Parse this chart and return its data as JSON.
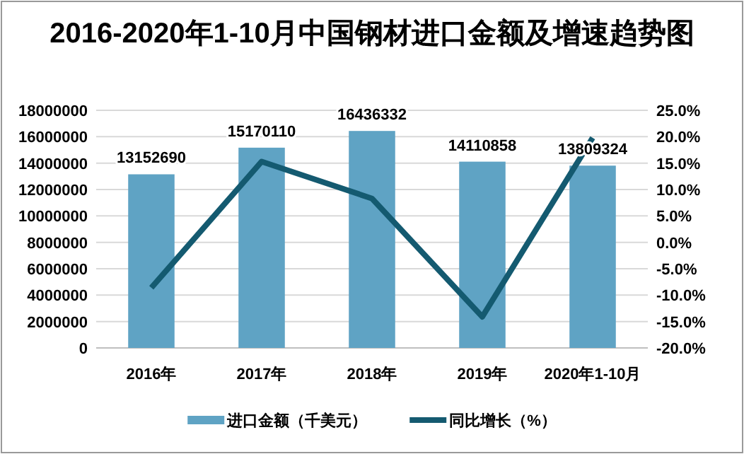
{
  "chart_data": {
    "type": "bar",
    "title": "2016-2020年1-10月中国钢材进口金额及增速趋势图",
    "categories": [
      "2016年",
      "2017年",
      "2018年",
      "2019年",
      "2020年1-10月"
    ],
    "series": [
      {
        "name": "进口金额（千美元）",
        "color": "#5fa3c4",
        "values": [
          13152690,
          15170110,
          16436332,
          14110858,
          13809324
        ],
        "data_labels": true
      },
      {
        "name": "同比增长（%）",
        "type": "line",
        "axis": "y2",
        "color": "#145a70",
        "values": [
          -8.6,
          15.3,
          8.3,
          -14.1,
          19.8
        ]
      }
    ],
    "ylim": [
      0,
      18000000
    ],
    "yticks": [
      0,
      2000000,
      4000000,
      6000000,
      8000000,
      10000000,
      12000000,
      14000000,
      16000000,
      18000000
    ],
    "y2lim": [
      -20,
      25
    ],
    "y2ticks": [
      {
        "value": -20,
        "label": "-20.0%"
      },
      {
        "value": -15,
        "label": "-15.0%"
      },
      {
        "value": -10,
        "label": "-10.0%"
      },
      {
        "value": -5,
        "label": "-5.0%"
      },
      {
        "value": 0,
        "label": "0.0%"
      },
      {
        "value": 5,
        "label": "5.0%"
      },
      {
        "value": 10,
        "label": "10.0%"
      },
      {
        "value": 15,
        "label": "15.0%"
      },
      {
        "value": 20,
        "label": "20.0%"
      },
      {
        "value": 25,
        "label": "25.0%"
      }
    ],
    "grid": "y",
    "legend": "bottom",
    "marker": "none"
  }
}
